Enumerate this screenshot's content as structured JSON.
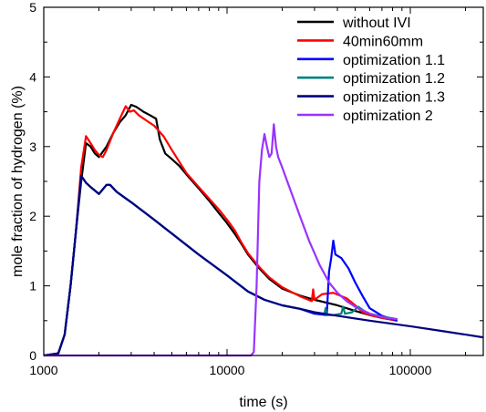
{
  "chart_data": {
    "type": "line",
    "title": "",
    "xlabel": "time (s)",
    "ylabel": "mole fraction of hydrogen (%)",
    "x_scale": "log",
    "xlim": [
      1000,
      250000
    ],
    "ylim": [
      0,
      5
    ],
    "x_ticks": [
      {
        "value": 1000,
        "label": "1000"
      },
      {
        "value": 10000,
        "label": "10000"
      },
      {
        "value": 100000,
        "label": "100000"
      }
    ],
    "y_ticks": [
      {
        "value": 0,
        "label": "0"
      },
      {
        "value": 1,
        "label": "1"
      },
      {
        "value": 2,
        "label": "2"
      },
      {
        "value": 3,
        "label": "3"
      },
      {
        "value": 4,
        "label": "4"
      },
      {
        "value": 5,
        "label": "5"
      }
    ],
    "legend_position": "top-right",
    "series": [
      {
        "name": "without IVI",
        "color": "#000000",
        "points": [
          [
            1000,
            0
          ],
          [
            1200,
            0.03
          ],
          [
            1300,
            0.3
          ],
          [
            1400,
            1.0
          ],
          [
            1500,
            1.8
          ],
          [
            1600,
            2.5
          ],
          [
            1700,
            3.05
          ],
          [
            1800,
            3.0
          ],
          [
            1900,
            2.9
          ],
          [
            2000,
            2.85
          ],
          [
            2200,
            3.0
          ],
          [
            2400,
            3.2
          ],
          [
            2600,
            3.35
          ],
          [
            2800,
            3.45
          ],
          [
            3000,
            3.6
          ],
          [
            3200,
            3.57
          ],
          [
            3500,
            3.5
          ],
          [
            3800,
            3.45
          ],
          [
            4100,
            3.4
          ],
          [
            4300,
            3.1
          ],
          [
            4600,
            2.9
          ],
          [
            5000,
            2.82
          ],
          [
            5500,
            2.72
          ],
          [
            6000,
            2.6
          ],
          [
            7000,
            2.4
          ],
          [
            8000,
            2.22
          ],
          [
            9000,
            2.05
          ],
          [
            10000,
            1.9
          ],
          [
            11000,
            1.75
          ],
          [
            12000,
            1.6
          ],
          [
            13000,
            1.45
          ],
          [
            15000,
            1.25
          ],
          [
            17000,
            1.1
          ],
          [
            20000,
            0.96
          ],
          [
            25000,
            0.86
          ],
          [
            30000,
            0.8
          ],
          [
            40000,
            0.72
          ],
          [
            50000,
            0.64
          ],
          [
            60000,
            0.58
          ],
          [
            70000,
            0.54
          ],
          [
            85000,
            0.5
          ]
        ]
      },
      {
        "name": "40min60mm",
        "color": "#ff0000",
        "points": [
          [
            1000,
            0
          ],
          [
            1200,
            0.03
          ],
          [
            1300,
            0.3
          ],
          [
            1400,
            1.0
          ],
          [
            1500,
            1.8
          ],
          [
            1600,
            2.7
          ],
          [
            1700,
            3.15
          ],
          [
            1800,
            3.05
          ],
          [
            1900,
            2.95
          ],
          [
            2000,
            2.88
          ],
          [
            2100,
            2.85
          ],
          [
            2200,
            2.95
          ],
          [
            2400,
            3.2
          ],
          [
            2600,
            3.4
          ],
          [
            2800,
            3.58
          ],
          [
            2950,
            3.5
          ],
          [
            3100,
            3.52
          ],
          [
            3300,
            3.45
          ],
          [
            3600,
            3.38
          ],
          [
            4000,
            3.3
          ],
          [
            4500,
            3.15
          ],
          [
            5000,
            2.95
          ],
          [
            6000,
            2.62
          ],
          [
            7000,
            2.42
          ],
          [
            8000,
            2.25
          ],
          [
            9000,
            2.1
          ],
          [
            10000,
            1.95
          ],
          [
            11000,
            1.8
          ],
          [
            12000,
            1.62
          ],
          [
            13000,
            1.47
          ],
          [
            15000,
            1.27
          ],
          [
            17000,
            1.12
          ],
          [
            20000,
            0.98
          ],
          [
            25000,
            0.85
          ],
          [
            29000,
            0.78
          ],
          [
            29500,
            0.95
          ],
          [
            30000,
            0.8
          ],
          [
            33000,
            0.88
          ],
          [
            38000,
            0.9
          ],
          [
            45000,
            0.82
          ],
          [
            50000,
            0.72
          ],
          [
            55000,
            0.62
          ],
          [
            60000,
            0.58
          ],
          [
            70000,
            0.54
          ],
          [
            85000,
            0.5
          ]
        ]
      },
      {
        "name": "optimization 1.1",
        "color": "#0000ff",
        "points": [
          [
            1000,
            0
          ],
          [
            1200,
            0.03
          ],
          [
            1300,
            0.3
          ],
          [
            1400,
            1.0
          ],
          [
            1500,
            1.8
          ],
          [
            1600,
            2.58
          ],
          [
            1700,
            2.48
          ],
          [
            1800,
            2.42
          ],
          [
            2000,
            2.32
          ],
          [
            2200,
            2.45
          ],
          [
            2300,
            2.45
          ],
          [
            2500,
            2.35
          ],
          [
            3000,
            2.2
          ],
          [
            4000,
            1.95
          ],
          [
            5000,
            1.75
          ],
          [
            7000,
            1.45
          ],
          [
            10000,
            1.15
          ],
          [
            13000,
            0.92
          ],
          [
            16000,
            0.8
          ],
          [
            20000,
            0.72
          ],
          [
            25000,
            0.67
          ],
          [
            30000,
            0.6
          ],
          [
            35000,
            0.58
          ],
          [
            36000,
            1.2
          ],
          [
            37000,
            1.4
          ],
          [
            38000,
            1.65
          ],
          [
            39000,
            1.45
          ],
          [
            42000,
            1.4
          ],
          [
            46000,
            1.25
          ],
          [
            50000,
            1.05
          ],
          [
            55000,
            0.85
          ],
          [
            60000,
            0.68
          ],
          [
            70000,
            0.57
          ],
          [
            85000,
            0.5
          ]
        ]
      },
      {
        "name": "optimization 1.2",
        "color": "#008080",
        "points": [
          [
            1000,
            0
          ],
          [
            1200,
            0.03
          ],
          [
            1300,
            0.3
          ],
          [
            1400,
            1.0
          ],
          [
            1500,
            1.8
          ],
          [
            1600,
            2.58
          ],
          [
            1700,
            2.48
          ],
          [
            1800,
            2.42
          ],
          [
            2000,
            2.32
          ],
          [
            2200,
            2.45
          ],
          [
            2300,
            2.45
          ],
          [
            2500,
            2.35
          ],
          [
            3000,
            2.2
          ],
          [
            4000,
            1.95
          ],
          [
            5000,
            1.75
          ],
          [
            7000,
            1.45
          ],
          [
            10000,
            1.15
          ],
          [
            13000,
            0.92
          ],
          [
            16000,
            0.8
          ],
          [
            20000,
            0.72
          ],
          [
            25000,
            0.67
          ],
          [
            30000,
            0.62
          ],
          [
            34000,
            0.6
          ],
          [
            34500,
            0.68
          ],
          [
            35000,
            0.58
          ],
          [
            38000,
            0.58
          ],
          [
            42000,
            0.6
          ],
          [
            43000,
            0.7
          ],
          [
            44000,
            0.6
          ],
          [
            48000,
            0.62
          ],
          [
            52000,
            0.7
          ],
          [
            56000,
            0.64
          ],
          [
            60000,
            0.6
          ],
          [
            70000,
            0.56
          ],
          [
            85000,
            0.52
          ]
        ]
      },
      {
        "name": "optimization 1.3",
        "color": "#000080",
        "points": [
          [
            1000,
            0
          ],
          [
            1200,
            0.03
          ],
          [
            1300,
            0.3
          ],
          [
            1400,
            1.0
          ],
          [
            1500,
            1.8
          ],
          [
            1600,
            2.58
          ],
          [
            1700,
            2.48
          ],
          [
            1800,
            2.42
          ],
          [
            2000,
            2.32
          ],
          [
            2200,
            2.45
          ],
          [
            2300,
            2.45
          ],
          [
            2500,
            2.35
          ],
          [
            3000,
            2.2
          ],
          [
            4000,
            1.95
          ],
          [
            5000,
            1.75
          ],
          [
            7000,
            1.45
          ],
          [
            10000,
            1.15
          ],
          [
            13000,
            0.92
          ],
          [
            16000,
            0.8
          ],
          [
            20000,
            0.72
          ],
          [
            25000,
            0.67
          ],
          [
            30000,
            0.62
          ],
          [
            40000,
            0.57
          ],
          [
            60000,
            0.5
          ],
          [
            100000,
            0.42
          ],
          [
            150000,
            0.35
          ],
          [
            200000,
            0.3
          ],
          [
            250000,
            0.26
          ]
        ]
      },
      {
        "name": "optimization 2",
        "color": "#9933ff",
        "points": [
          [
            1000,
            0
          ],
          [
            13500,
            0
          ],
          [
            14000,
            0.05
          ],
          [
            14500,
            1.0
          ],
          [
            15000,
            2.5
          ],
          [
            15500,
            2.95
          ],
          [
            16000,
            3.18
          ],
          [
            16500,
            3.0
          ],
          [
            17000,
            2.85
          ],
          [
            17500,
            2.9
          ],
          [
            18000,
            3.32
          ],
          [
            18500,
            3.0
          ],
          [
            19000,
            2.85
          ],
          [
            20000,
            2.7
          ],
          [
            22000,
            2.4
          ],
          [
            25000,
            2.0
          ],
          [
            28000,
            1.65
          ],
          [
            32000,
            1.3
          ],
          [
            36000,
            1.05
          ],
          [
            40000,
            0.9
          ],
          [
            45000,
            0.78
          ],
          [
            50000,
            0.7
          ],
          [
            60000,
            0.6
          ],
          [
            70000,
            0.55
          ],
          [
            85000,
            0.52
          ]
        ]
      }
    ]
  }
}
